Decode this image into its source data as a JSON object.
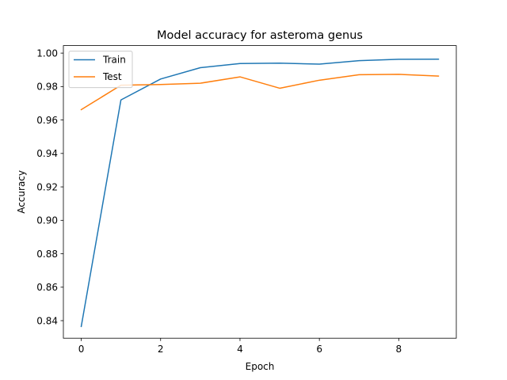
{
  "chart_data": {
    "type": "line",
    "title": "Model accuracy for asteroma genus",
    "xlabel": "Epoch",
    "ylabel": "Accuracy",
    "x": [
      0,
      1,
      2,
      3,
      4,
      5,
      6,
      7,
      8,
      9
    ],
    "xlim": [
      -0.45,
      9.45
    ],
    "ylim": [
      0.8295,
      1.0045
    ],
    "xticks": [
      0,
      2,
      4,
      6,
      8
    ],
    "yticks": [
      0.84,
      0.86,
      0.88,
      0.9,
      0.92,
      0.94,
      0.96,
      0.98,
      1.0
    ],
    "ytick_labels": [
      "0.84",
      "0.86",
      "0.88",
      "0.90",
      "0.92",
      "0.94",
      "0.96",
      "0.98",
      "1.00"
    ],
    "grid": false,
    "legend": "top-left",
    "series": [
      {
        "name": "Train",
        "color": "#1f77b4",
        "values": [
          0.8365,
          0.972,
          0.9845,
          0.9913,
          0.9938,
          0.994,
          0.9934,
          0.9955,
          0.9963,
          0.9964
        ]
      },
      {
        "name": "Test",
        "color": "#ff7f0e",
        "values": [
          0.9662,
          0.9808,
          0.9812,
          0.982,
          0.9858,
          0.979,
          0.9838,
          0.9871,
          0.9873,
          0.9863
        ]
      }
    ]
  }
}
